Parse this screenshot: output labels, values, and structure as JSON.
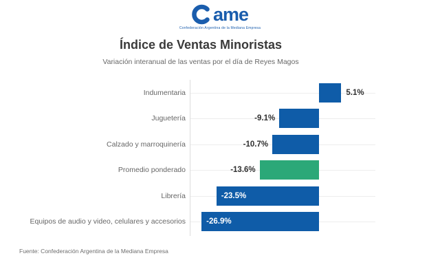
{
  "logo": {
    "text_after_mark": "ame",
    "tagline": "Confederación Argentina de la Mediana Empresa",
    "color": "#1a5dad"
  },
  "footer": {
    "source": "Fuente: Confederación Argentina de la Mediana Empresa"
  },
  "chart_data": {
    "type": "bar",
    "orientation": "horizontal",
    "title": "Índice de Ventas Minoristas",
    "subtitle": "Variación interanual de las ventas por el día de Reyes Magos",
    "unit": "%",
    "categories": [
      "Indumentaria",
      "Juguetería",
      "Calzado y marroquinería",
      "Promedio ponderado",
      "Librería",
      "Equipos de audio y video, celulares y accesorios"
    ],
    "values": [
      5.1,
      -9.1,
      -10.7,
      -13.6,
      -23.5,
      -26.9
    ],
    "value_labels": [
      "5.1%",
      "-9.1%",
      "-10.7%",
      "-13.6%",
      "-23.5%",
      "-26.9%"
    ],
    "label_inside": [
      false,
      false,
      false,
      false,
      true,
      true
    ],
    "bar_colors": [
      "#0f5ca8",
      "#0f5ca8",
      "#0f5ca8",
      "#2ba878",
      "#0f5ca8",
      "#0f5ca8"
    ],
    "highlight_category": "Promedio ponderado",
    "xlim": [
      -29.5,
      13
    ],
    "grid": true,
    "legend": false
  }
}
